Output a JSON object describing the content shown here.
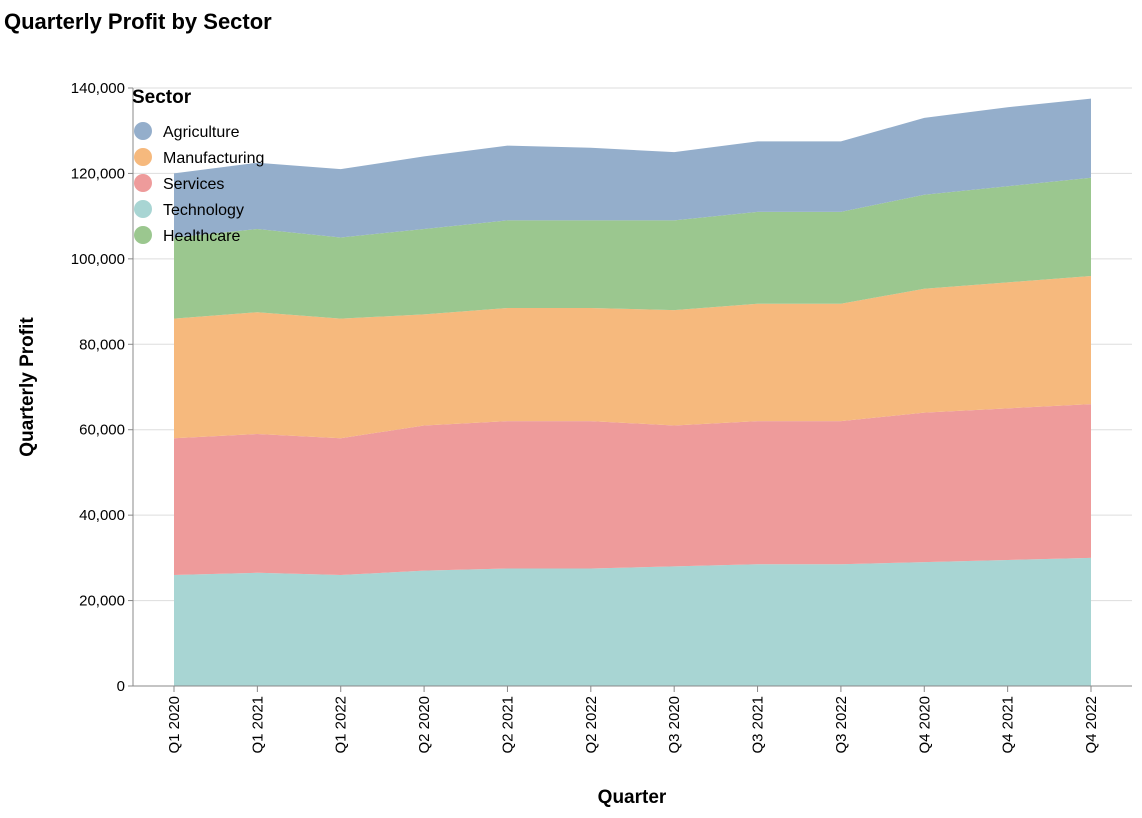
{
  "chart_data": {
    "type": "area",
    "stacked": true,
    "title": "Quarterly Profit by Sector",
    "xlabel": "Quarter",
    "ylabel": "Quarterly Profit",
    "ylim": [
      0,
      140000
    ],
    "yticks": [
      0,
      20000,
      40000,
      60000,
      80000,
      100000,
      120000,
      140000
    ],
    "ytick_labels": [
      "0",
      "20,000",
      "40,000",
      "60,000",
      "80,000",
      "100,000",
      "120,000",
      "140,000"
    ],
    "grid": true,
    "legend": {
      "title": "Sector",
      "placement": "top-left"
    },
    "categories": [
      "Q1 2020",
      "Q1 2021",
      "Q1 2022",
      "Q2 2020",
      "Q2 2021",
      "Q2 2022",
      "Q3 2020",
      "Q3 2021",
      "Q3 2022",
      "Q4 2020",
      "Q4 2021",
      "Q4 2022"
    ],
    "series": [
      {
        "name": "Technology",
        "color": "#a8d5d3",
        "values": [
          26000,
          26500,
          26000,
          27000,
          27500,
          27500,
          28000,
          28500,
          28500,
          29000,
          29500,
          30000
        ]
      },
      {
        "name": "Services",
        "color": "#ee9b9b",
        "values": [
          32000,
          32500,
          32000,
          34000,
          34500,
          34500,
          33000,
          33500,
          33500,
          35000,
          35500,
          36000
        ]
      },
      {
        "name": "Manufacturing",
        "color": "#f6b97d",
        "values": [
          28000,
          28500,
          28000,
          26000,
          26500,
          26500,
          27000,
          27500,
          27500,
          29000,
          29500,
          30000
        ]
      },
      {
        "name": "Healthcare",
        "color": "#9bc78f",
        "values": [
          19000,
          19500,
          19000,
          20000,
          20500,
          20500,
          21000,
          21500,
          21500,
          22000,
          22500,
          23000
        ]
      },
      {
        "name": "Agriculture",
        "color": "#94aecb",
        "values": [
          15000,
          15500,
          16000,
          17000,
          17500,
          17000,
          16000,
          16500,
          16500,
          18000,
          18500,
          18500
        ]
      }
    ],
    "legend_order": [
      "Agriculture",
      "Manufacturing",
      "Services",
      "Technology",
      "Healthcare"
    ]
  }
}
